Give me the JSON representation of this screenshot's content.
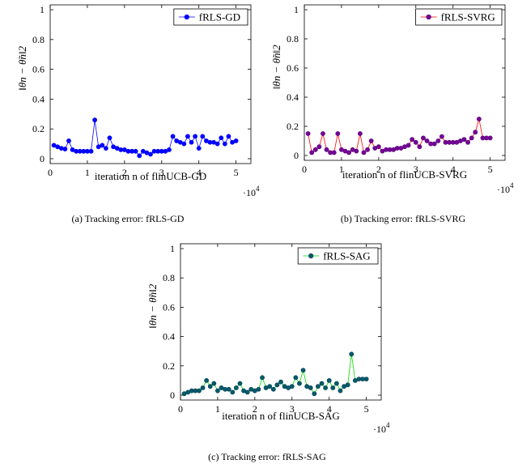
{
  "chart_data": [
    {
      "type": "line",
      "legend": "fRLS-GD",
      "legend_placement": "top-right",
      "xlabel": "iteration n of flinUCB-GD",
      "ylabel": "‖θn − θ̃n‖2",
      "x_scale_note": "·10^4",
      "caption": "(a)  Tracking error: fRLS-GD",
      "line_color": "#0000ff",
      "marker_fill": "#0000ff",
      "marker_stroke": "#0000ff",
      "xlim": [
        0,
        5.4
      ],
      "ylim": [
        0,
        1
      ],
      "xticks": [
        "0",
        "1",
        "2",
        "3",
        "4",
        "5"
      ],
      "yticks": [
        "0",
        "0.2",
        "0.4",
        "0.6",
        "0.8",
        "1"
      ],
      "series": [
        {
          "x": [
            0.1,
            0.2,
            0.3,
            0.4,
            0.5,
            0.6,
            0.7,
            0.8,
            0.9,
            1.0,
            1.1,
            1.2,
            1.3,
            1.4,
            1.5,
            1.6,
            1.7,
            1.8,
            1.9,
            2.0,
            2.1,
            2.2,
            2.3,
            2.4,
            2.5,
            2.6,
            2.7,
            2.8,
            2.9,
            3.0,
            3.1,
            3.2,
            3.3,
            3.4,
            3.5,
            3.6,
            3.7,
            3.8,
            3.9,
            4.0,
            4.1,
            4.2,
            4.3,
            4.4,
            4.5,
            4.6,
            4.7,
            4.8,
            4.9,
            5.0
          ],
          "y": [
            0.09,
            0.08,
            0.07,
            0.065,
            0.12,
            0.06,
            0.05,
            0.05,
            0.05,
            0.05,
            0.05,
            0.26,
            0.08,
            0.09,
            0.07,
            0.14,
            0.08,
            0.07,
            0.06,
            0.06,
            0.05,
            0.05,
            0.05,
            0.02,
            0.05,
            0.04,
            0.03,
            0.05,
            0.05,
            0.05,
            0.05,
            0.06,
            0.15,
            0.12,
            0.11,
            0.1,
            0.15,
            0.11,
            0.15,
            0.07,
            0.15,
            0.12,
            0.11,
            0.11,
            0.1,
            0.14,
            0.1,
            0.15,
            0.11,
            0.12
          ]
        }
      ]
    },
    {
      "type": "line",
      "legend": "fRLS-SVRG",
      "legend_placement": "top-right",
      "xlabel": "iteration n of flinUCB-SVRG",
      "ylabel": "‖θn − θ̃n‖2",
      "x_scale_note": "·10^4",
      "caption": "(b)  Tracking error: fRLS-SVRG",
      "line_color": "#ff0000",
      "marker_fill": "#7a0099",
      "marker_stroke": "#4a0070",
      "xlim": [
        0,
        5.4
      ],
      "ylim": [
        0,
        1
      ],
      "xticks": [
        "0",
        "1",
        "2",
        "3",
        "4",
        "5"
      ],
      "yticks": [
        "0",
        "0.2",
        "0.4",
        "0.6",
        "0.8",
        "1"
      ],
      "series": [
        {
          "x": [
            0.1,
            0.2,
            0.3,
            0.4,
            0.5,
            0.6,
            0.7,
            0.8,
            0.9,
            1.0,
            1.1,
            1.2,
            1.3,
            1.4,
            1.5,
            1.6,
            1.7,
            1.8,
            1.9,
            2.0,
            2.1,
            2.2,
            2.3,
            2.4,
            2.5,
            2.6,
            2.7,
            2.8,
            2.9,
            3.0,
            3.1,
            3.2,
            3.3,
            3.4,
            3.5,
            3.6,
            3.7,
            3.8,
            3.9,
            4.0,
            4.1,
            4.2,
            4.3,
            4.4,
            4.5,
            4.6,
            4.7,
            4.8,
            4.9,
            5.0
          ],
          "y": [
            0.15,
            0.02,
            0.04,
            0.06,
            0.15,
            0.04,
            0.02,
            0.02,
            0.15,
            0.04,
            0.03,
            0.02,
            0.04,
            0.03,
            0.15,
            0.02,
            0.04,
            0.1,
            0.05,
            0.06,
            0.03,
            0.04,
            0.04,
            0.04,
            0.05,
            0.05,
            0.06,
            0.07,
            0.11,
            0.09,
            0.06,
            0.12,
            0.1,
            0.08,
            0.08,
            0.1,
            0.13,
            0.09,
            0.09,
            0.09,
            0.09,
            0.1,
            0.11,
            0.09,
            0.12,
            0.16,
            0.25,
            0.12,
            0.12,
            0.12
          ]
        }
      ]
    },
    {
      "type": "line",
      "legend": "fRLS-SAG",
      "legend_placement": "top-right",
      "xlabel": "iteration n of flinUCB-SAG",
      "ylabel": "‖θn − θ̃n‖2",
      "x_scale_note": "·10^4",
      "caption": "(c)  Tracking error: fRLS-SAG",
      "line_color": "#00dd00",
      "marker_fill": "#005c6e",
      "marker_stroke": "#003a46",
      "xlim": [
        0,
        5.4
      ],
      "ylim": [
        0,
        1
      ],
      "xticks": [
        "0",
        "1",
        "2",
        "3",
        "4",
        "5"
      ],
      "yticks": [
        "0",
        "0.2",
        "0.4",
        "0.6",
        "0.8",
        "1"
      ],
      "series": [
        {
          "x": [
            0.1,
            0.2,
            0.3,
            0.4,
            0.5,
            0.6,
            0.7,
            0.8,
            0.9,
            1.0,
            1.1,
            1.2,
            1.3,
            1.4,
            1.5,
            1.6,
            1.7,
            1.8,
            1.9,
            2.0,
            2.1,
            2.2,
            2.3,
            2.4,
            2.5,
            2.6,
            2.7,
            2.8,
            2.9,
            3.0,
            3.1,
            3.2,
            3.3,
            3.4,
            3.5,
            3.6,
            3.7,
            3.8,
            3.9,
            4.0,
            4.1,
            4.2,
            4.3,
            4.4,
            4.5,
            4.6,
            4.7,
            4.8,
            4.9,
            5.0
          ],
          "y": [
            0.01,
            0.02,
            0.03,
            0.03,
            0.03,
            0.05,
            0.1,
            0.06,
            0.08,
            0.03,
            0.05,
            0.04,
            0.04,
            0.02,
            0.05,
            0.08,
            0.03,
            0.02,
            0.04,
            0.03,
            0.04,
            0.12,
            0.05,
            0.06,
            0.04,
            0.07,
            0.09,
            0.06,
            0.05,
            0.06,
            0.12,
            0.08,
            0.17,
            0.06,
            0.05,
            0.01,
            0.06,
            0.08,
            0.05,
            0.1,
            0.05,
            0.08,
            0.03,
            0.06,
            0.07,
            0.28,
            0.1,
            0.11,
            0.11,
            0.11
          ]
        }
      ]
    }
  ]
}
